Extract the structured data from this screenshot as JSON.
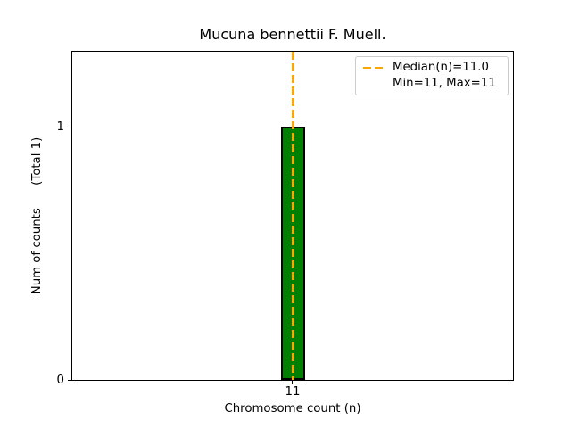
{
  "title": "Mucuna bennettii F. Muell.",
  "x_axis": {
    "label": "Chromosome count (n)",
    "ticks": [
      "11"
    ]
  },
  "y_axis": {
    "label": "Num of counts      (Total 1)",
    "ticks": [
      "0",
      "1"
    ]
  },
  "legend": {
    "line1": "Median(n)=11.0",
    "line2": "Min=11, Max=11"
  },
  "colors": {
    "bar": "#008000",
    "bar_edge": "#000000",
    "median_line": "#FFA500",
    "legend_border": "#cccccc",
    "axis": "#000000",
    "background": "#ffffff"
  },
  "chart_data": {
    "type": "bar",
    "title": "Mucuna bennettii F. Muell.",
    "categories": [
      11
    ],
    "values": [
      1
    ],
    "xlabel": "Chromosome count (n)",
    "ylabel": "Num of counts (Total 1)",
    "xticks": [
      11
    ],
    "yticks": [
      0,
      1
    ],
    "ylim": [
      0,
      1.3
    ],
    "grid": false,
    "bar_color": "#008000",
    "bar_edge_color": "#000000",
    "annotations": {
      "median_n": 11.0,
      "min_n": 11,
      "max_n": 11,
      "total_counts": 1,
      "median_line": {
        "style": "dashed",
        "orientation": "vertical",
        "x": 11,
        "color": "#FFA500"
      }
    },
    "legend": {
      "entries": [
        "Median(n)=11.0",
        "Min=11, Max=11"
      ],
      "position": "upper right"
    }
  }
}
